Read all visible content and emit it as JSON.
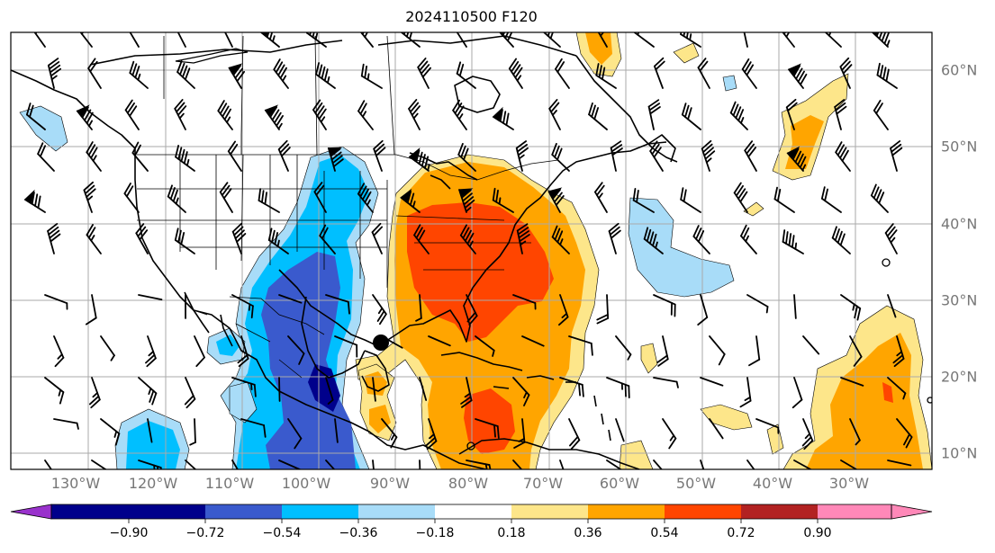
{
  "title": "2024110500 F120",
  "map": {
    "projection": "PlateCarree",
    "extent_lon": [
      -137,
      -17
    ],
    "extent_lat": [
      8,
      65
    ],
    "features": [
      "coastlines",
      "country borders",
      "US state borders",
      "contour lines"
    ],
    "overlay": "wind barbs",
    "marker": "low/position dot near 88°W 24°N"
  },
  "lon_labels": [
    "130°W",
    "120°W",
    "110°W",
    "100°W",
    "90°W",
    "80°W",
    "70°W",
    "60°W",
    "50°W",
    "40°W",
    "30°W"
  ],
  "lat_labels": [
    "60°N",
    "50°N",
    "40°N",
    "30°N",
    "20°N",
    "10°N"
  ],
  "colorbar": {
    "ticks": [
      "−0.90",
      "−0.72",
      "−0.54",
      "−0.36",
      "−0.18",
      "0.18",
      "0.36",
      "0.54",
      "0.72",
      "0.90"
    ],
    "colors": [
      "#9932cc",
      "#00008b",
      "#3a5acd",
      "#00bfff",
      "#a8dcf8",
      "#ffffff",
      "#fde68a",
      "#ffa500",
      "#ff4500",
      "#b22222",
      "#ff88b8"
    ],
    "extend": "both"
  },
  "fill_colors": {
    "neg1": "#a8dcf8",
    "neg2": "#00bfff",
    "neg3": "#3a5acd",
    "neg4": "#00008b",
    "pos1": "#fde68a",
    "pos2": "#ffa500",
    "pos3": "#ff4500",
    "pos4": "#b22222"
  }
}
